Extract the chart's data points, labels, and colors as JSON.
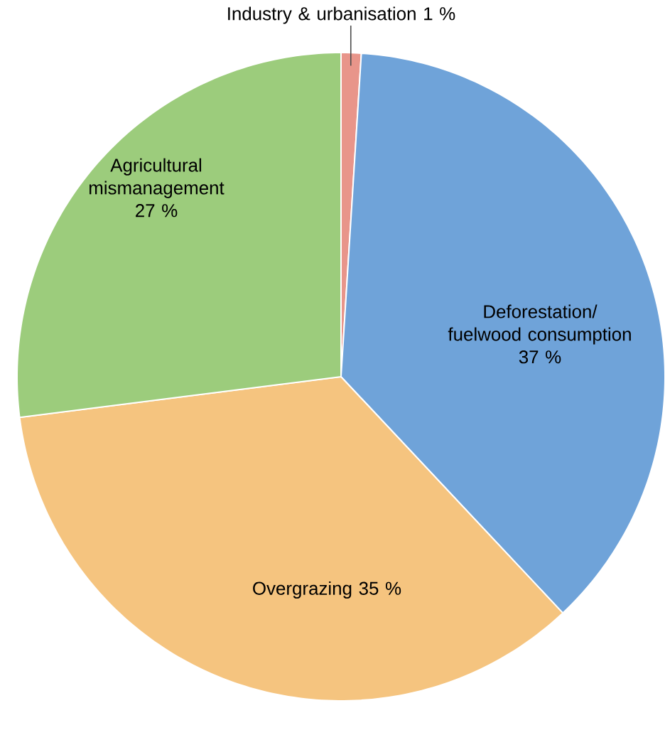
{
  "chart_data": {
    "type": "pie",
    "categories": [
      "Industry & urbanisation",
      "Deforestation/ fuelwood consumption",
      "Overgrazing",
      "Agricultural mismanagement"
    ],
    "values": [
      1,
      37,
      35,
      27
    ],
    "value_labels": [
      "1 %",
      "37 %",
      "35 %",
      "27 %"
    ],
    "colors": [
      "#e8958a",
      "#6fa3d9",
      "#f5c47f",
      "#9ccc7c"
    ]
  }
}
